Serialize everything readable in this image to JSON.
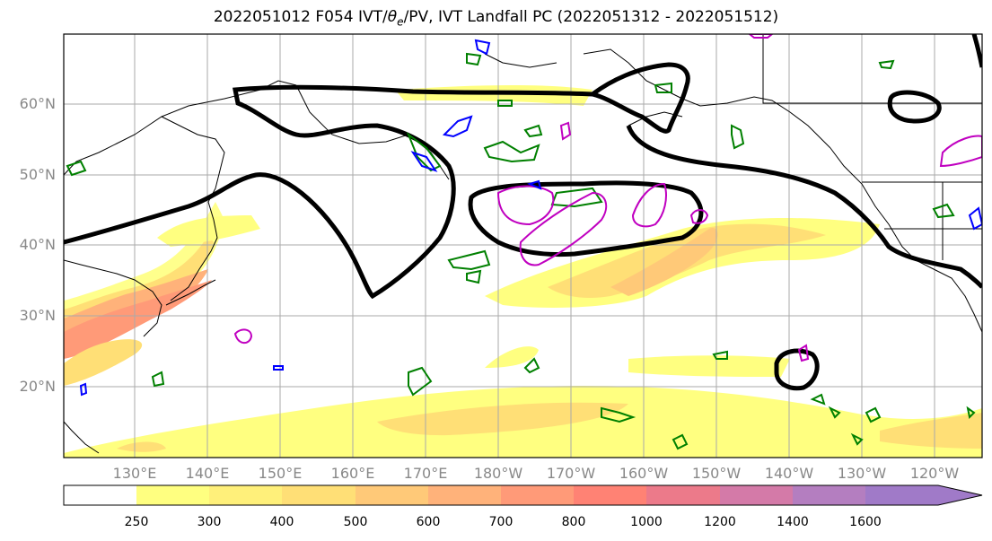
{
  "title": "2022051012 F054 IVT/θe/PV, IVT Landfall PC (2022051312 - 2022051512)",
  "title_prefix": "2022051012 F054 IVT/",
  "title_theta": "θ",
  "title_sub": "e",
  "title_suffix": "/PV, IVT Landfall PC (2022051312 - 2022051512)",
  "lat_labels": [
    "60°N",
    "50°N",
    "40°N",
    "30°N",
    "20°N"
  ],
  "lon_labels": [
    "130°E",
    "140°E",
    "150°E",
    "160°E",
    "170°E",
    "180°W",
    "170°W",
    "160°W",
    "150°W",
    "140°W",
    "130°W",
    "120°W"
  ],
  "colorbar": {
    "ticks": [
      "250",
      "300",
      "400",
      "500",
      "600",
      "700",
      "800",
      "1000",
      "1200",
      "1400",
      "1600"
    ],
    "colors": [
      "#ffffff",
      "#ffff80",
      "#fff07a",
      "#ffdf76",
      "#ffc978",
      "#ffb27a",
      "#ff9a78",
      "#ff8274",
      "#ec7a8a",
      "#d47aa8",
      "#b47ec0",
      "#a07ac8"
    ]
  },
  "colors": {
    "pc_contour": "#000000",
    "theta_e": "#008000",
    "pv": "#c000c0",
    "ivt_neg": "#0000ff",
    "coast": "#000000",
    "grid": "#aaaaaa"
  }
}
